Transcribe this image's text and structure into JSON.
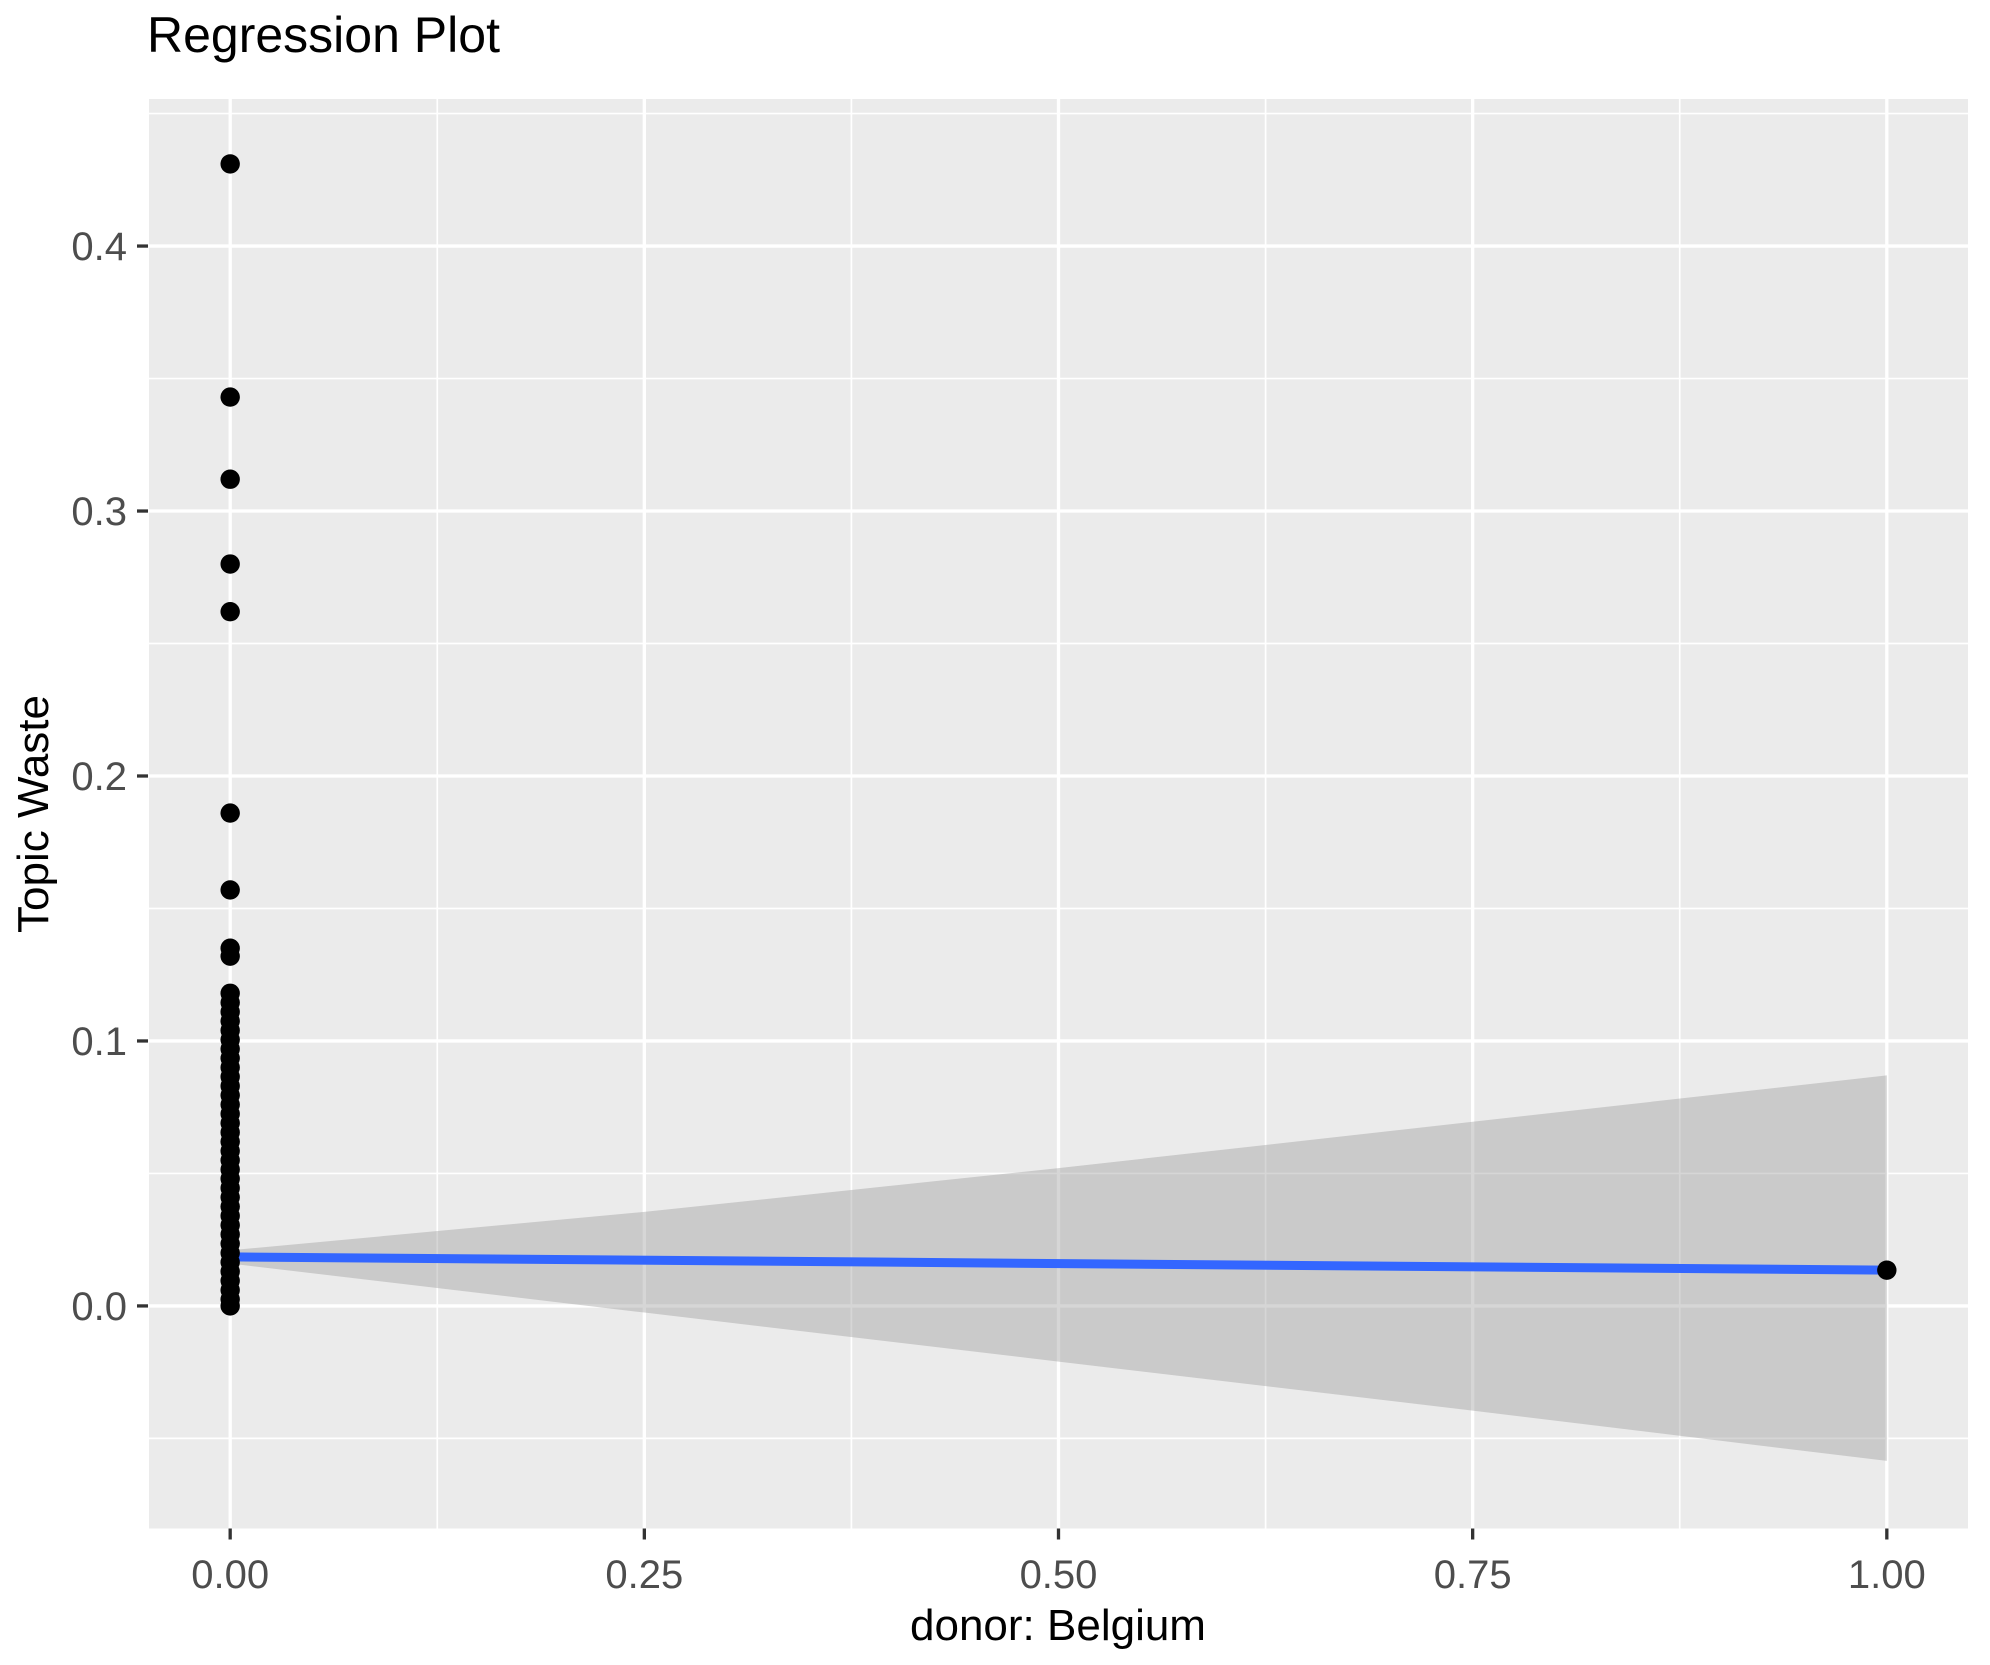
{
  "chart_data": {
    "type": "scatter",
    "title": "Regression Plot",
    "xlabel": "donor: Belgium",
    "ylabel": "Topic Waste",
    "legend": "none",
    "grid": "on",
    "panel_background": "#EBEBEB",
    "grid_color": "#FFFFFF",
    "point_color": "#000000",
    "line_color": "#3366FF",
    "band_color": "#999999",
    "band_opacity": 0.4,
    "tick_color": "#333333",
    "tick_label_color": "#4D4D4D",
    "xlim": [
      -0.049,
      1.049
    ],
    "ylim": [
      -0.084,
      0.4555
    ],
    "x_ticks": {
      "values": [
        0,
        0.25,
        0.5,
        0.75,
        1
      ],
      "labels": [
        "0.00",
        "0.25",
        "0.50",
        "0.75",
        "1.00"
      ]
    },
    "y_ticks": {
      "values": [
        0,
        0.1,
        0.2,
        0.3,
        0.4
      ],
      "labels": [
        "0.0",
        "0.1",
        "0.2",
        "0.3",
        "0.4"
      ]
    },
    "x_minor": [
      0.125,
      0.375,
      0.625,
      0.875
    ],
    "y_minor": [
      -0.05,
      0.05,
      0.15,
      0.25,
      0.35,
      0.45
    ],
    "points": [
      [
        0,
        0.431
      ],
      [
        0,
        0.343
      ],
      [
        0,
        0.312
      ],
      [
        0,
        0.28
      ],
      [
        0,
        0.262
      ],
      [
        0,
        0.186
      ],
      [
        0,
        0.157
      ],
      [
        0,
        0.135
      ],
      [
        0,
        0.132
      ],
      [
        0,
        0.118
      ],
      [
        0,
        0.1145
      ],
      [
        0,
        0.111
      ],
      [
        0,
        0.1075
      ],
      [
        0,
        0.104
      ],
      [
        0,
        0.1005
      ],
      [
        0,
        0.097
      ],
      [
        0,
        0.0935
      ],
      [
        0,
        0.09
      ],
      [
        0,
        0.0865
      ],
      [
        0,
        0.083
      ],
      [
        0,
        0.0795
      ],
      [
        0,
        0.076
      ],
      [
        0,
        0.0725
      ],
      [
        0,
        0.069
      ],
      [
        0,
        0.0655
      ],
      [
        0,
        0.062
      ],
      [
        0,
        0.0585
      ],
      [
        0,
        0.055
      ],
      [
        0,
        0.0515
      ],
      [
        0,
        0.048
      ],
      [
        0,
        0.0445
      ],
      [
        0,
        0.041
      ],
      [
        0,
        0.0375
      ],
      [
        0,
        0.034
      ],
      [
        0,
        0.0305
      ],
      [
        0,
        0.027
      ],
      [
        0,
        0.0235
      ],
      [
        0,
        0.02
      ],
      [
        0,
        0.0165
      ],
      [
        0,
        0.013
      ],
      [
        0,
        0.0095
      ],
      [
        0,
        0.006
      ],
      [
        0,
        0.0025
      ],
      [
        0,
        0.0
      ],
      [
        1,
        0.0135
      ]
    ],
    "point_radius": 9.7,
    "regression_line": {
      "x": [
        0,
        1
      ],
      "y": [
        0.0185,
        0.0135
      ],
      "width": 9
    },
    "ci_band": {
      "x": [
        0,
        0.25,
        0.5,
        0.75,
        1
      ],
      "upper": [
        0.021,
        0.0355,
        0.052,
        0.0695,
        0.087
      ],
      "lower": [
        0.016,
        -0.0025,
        -0.021,
        -0.0395,
        -0.0585
      ]
    }
  }
}
